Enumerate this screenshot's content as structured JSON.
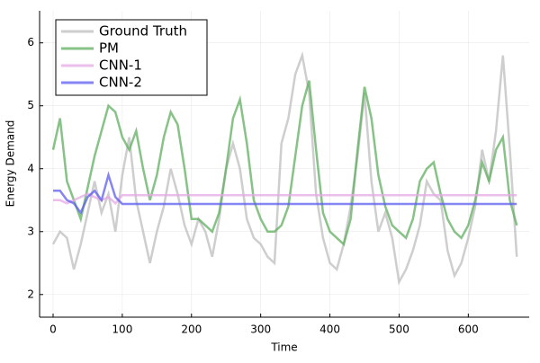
{
  "chart_data": {
    "type": "line",
    "xlabel": "Time",
    "ylabel": "Energy Demand",
    "x": [
      0,
      10,
      20,
      30,
      40,
      50,
      60,
      70,
      80,
      90,
      100,
      110,
      120,
      130,
      140,
      150,
      160,
      170,
      180,
      190,
      200,
      210,
      220,
      230,
      240,
      250,
      260,
      270,
      280,
      290,
      300,
      310,
      320,
      330,
      340,
      350,
      360,
      370,
      380,
      390,
      400,
      410,
      420,
      430,
      440,
      450,
      460,
      470,
      480,
      490,
      500,
      510,
      520,
      530,
      540,
      550,
      560,
      570,
      580,
      590,
      600,
      610,
      620,
      630,
      640,
      650,
      660,
      670
    ],
    "series": [
      {
        "name": "Ground Truth",
        "color": "#bdbdbd",
        "values": [
          2.8,
          3.0,
          2.9,
          2.4,
          2.8,
          3.3,
          3.8,
          3.3,
          3.6,
          3.0,
          3.9,
          4.5,
          3.5,
          3.0,
          2.5,
          3.0,
          3.4,
          4.0,
          3.6,
          3.1,
          2.8,
          3.2,
          3.0,
          2.6,
          3.2,
          4.0,
          4.4,
          4.0,
          3.2,
          2.9,
          2.8,
          2.6,
          2.5,
          4.4,
          4.8,
          5.5,
          5.8,
          5.2,
          3.6,
          2.9,
          2.5,
          2.4,
          2.8,
          3.4,
          4.2,
          5.2,
          3.8,
          3.0,
          3.3,
          2.9,
          2.2,
          2.4,
          2.7,
          3.1,
          3.8,
          3.6,
          3.5,
          2.7,
          2.3,
          2.5,
          2.9,
          3.4,
          4.3,
          3.8,
          4.6,
          5.8,
          4.3,
          2.6
        ]
      },
      {
        "name": "PM",
        "color": "#5fae5f",
        "values": [
          4.3,
          4.8,
          3.8,
          3.5,
          3.2,
          3.7,
          4.2,
          4.6,
          5.0,
          4.9,
          4.5,
          4.3,
          4.6,
          4.0,
          3.5,
          3.9,
          4.5,
          4.9,
          4.7,
          4.0,
          3.2,
          3.2,
          3.1,
          3.0,
          3.3,
          4.0,
          4.8,
          5.1,
          4.4,
          3.5,
          3.2,
          3.0,
          3.0,
          3.1,
          3.4,
          4.2,
          5.0,
          5.4,
          4.3,
          3.3,
          3.0,
          2.9,
          2.8,
          3.2,
          4.3,
          5.3,
          4.8,
          3.9,
          3.4,
          3.1,
          3.0,
          2.9,
          3.2,
          3.8,
          4.0,
          4.1,
          3.6,
          3.2,
          3.0,
          2.9,
          3.1,
          3.5,
          4.1,
          3.8,
          4.3,
          4.5,
          3.5,
          3.1
        ]
      },
      {
        "name": "CNN-1",
        "color": "#e6a8e6",
        "values": [
          3.5,
          3.5,
          3.45,
          3.5,
          3.55,
          3.6,
          3.55,
          3.5,
          3.55,
          3.45,
          3.58,
          3.58,
          3.58,
          3.58,
          3.58,
          3.58,
          3.58,
          3.58,
          3.58,
          3.58,
          3.58,
          3.58,
          3.58,
          3.58,
          3.58,
          3.58,
          3.58,
          3.58,
          3.58,
          3.58,
          3.58,
          3.58,
          3.58,
          3.58,
          3.58,
          3.58,
          3.58,
          3.58,
          3.58,
          3.58,
          3.58,
          3.58,
          3.58,
          3.58,
          3.58,
          3.58,
          3.58,
          3.58,
          3.58,
          3.58,
          3.58,
          3.58,
          3.58,
          3.58,
          3.58,
          3.58,
          3.58,
          3.58,
          3.58,
          3.58,
          3.58,
          3.58,
          3.58,
          3.58,
          3.58,
          3.58,
          3.58,
          3.58
        ]
      },
      {
        "name": "CNN-2",
        "color": "#5c5cf0",
        "values": [
          3.65,
          3.65,
          3.5,
          3.45,
          3.3,
          3.55,
          3.65,
          3.5,
          3.9,
          3.55,
          3.44,
          3.44,
          3.44,
          3.44,
          3.44,
          3.44,
          3.44,
          3.44,
          3.44,
          3.44,
          3.44,
          3.44,
          3.44,
          3.44,
          3.44,
          3.44,
          3.44,
          3.44,
          3.44,
          3.44,
          3.44,
          3.44,
          3.44,
          3.44,
          3.44,
          3.44,
          3.44,
          3.44,
          3.44,
          3.44,
          3.44,
          3.44,
          3.44,
          3.44,
          3.44,
          3.44,
          3.44,
          3.44,
          3.44,
          3.44,
          3.44,
          3.44,
          3.44,
          3.44,
          3.44,
          3.44,
          3.44,
          3.44,
          3.44,
          3.44,
          3.44,
          3.44,
          3.44,
          3.44,
          3.44,
          3.44,
          3.44,
          3.44
        ]
      }
    ],
    "xlim": [
      -19.5,
      688
    ],
    "ylim": [
      1.64,
      6.51
    ],
    "xticks": [
      0,
      100,
      200,
      300,
      400,
      500,
      600
    ],
    "yticks": [
      2,
      3,
      4,
      5,
      6
    ],
    "grid": true,
    "legend": "top-left"
  }
}
